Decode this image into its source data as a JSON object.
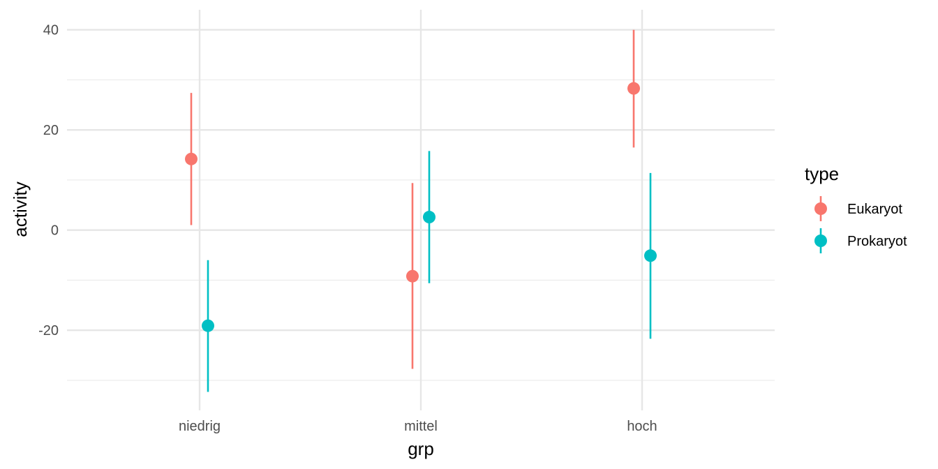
{
  "chart_data": {
    "type": "scatter",
    "subtype": "pointrange",
    "title": "",
    "xlabel": "grp",
    "ylabel": "activity",
    "categories": [
      "niedrig",
      "mittel",
      "hoch"
    ],
    "yticks": [
      -20,
      0,
      20,
      40
    ],
    "ytick_labels": [
      "-20",
      "0",
      "20",
      "40"
    ],
    "ylim": [
      -36,
      44
    ],
    "grid": true,
    "legend": {
      "title": "type",
      "position": "right"
    },
    "series": [
      {
        "name": "Eukaryot",
        "color": "#F8766D",
        "values": [
          14.2,
          -9.2,
          28.3
        ],
        "lower": [
          1.0,
          -27.7,
          16.5
        ],
        "upper": [
          27.4,
          9.4,
          40.0
        ]
      },
      {
        "name": "Prokaryot",
        "color": "#00BFC4",
        "values": [
          -19.1,
          2.6,
          -5.1
        ],
        "lower": [
          -32.3,
          -10.6,
          -21.7
        ],
        "upper": [
          -6.0,
          15.8,
          11.4
        ]
      }
    ]
  }
}
